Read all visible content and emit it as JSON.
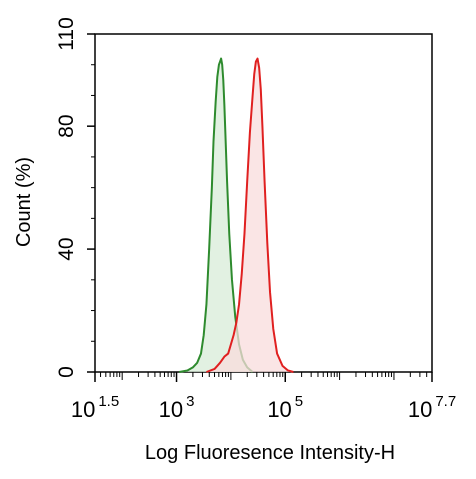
{
  "chart_data": {
    "type": "area",
    "xlabel": "Log Fluoresence Intensity-H",
    "ylabel": "Count  (%)",
    "x_scale": "log10",
    "xlim_exponent": [
      1.5,
      7.7
    ],
    "ylim": [
      0,
      110
    ],
    "x_ticks": [
      {
        "base": "10",
        "exp": "1.5",
        "value": 1.5
      },
      {
        "base": "10",
        "exp": "3",
        "value": 3
      },
      {
        "base": "10",
        "exp": "5",
        "value": 5
      },
      {
        "base": "10",
        "exp": "7.7",
        "value": 7.7
      }
    ],
    "y_ticks": [
      {
        "label": "0",
        "value": 0
      },
      {
        "label": "40",
        "value": 40
      },
      {
        "label": "80",
        "value": 80
      },
      {
        "label": "110",
        "value": 110
      }
    ],
    "grid": false,
    "series": [
      {
        "color": "#2e8b2e",
        "fill": "#d8ecd8",
        "x": [
          3.05,
          3.2,
          3.3,
          3.38,
          3.45,
          3.5,
          3.55,
          3.6,
          3.65,
          3.68,
          3.72,
          3.75,
          3.78,
          3.8,
          3.82,
          3.84,
          3.86,
          3.88,
          3.9,
          3.93,
          3.97,
          4.02,
          4.08,
          4.15,
          4.22,
          4.3,
          4.4
        ],
        "y": [
          0,
          0.5,
          1.5,
          3,
          6,
          12,
          22,
          40,
          60,
          75,
          88,
          96,
          100,
          101,
          102,
          100,
          95,
          87,
          77,
          62,
          45,
          30,
          18,
          9,
          4,
          1.5,
          0
        ]
      },
      {
        "color": "#e02020",
        "fill": "#f8dcdc",
        "x": [
          3.55,
          3.7,
          3.8,
          3.88,
          3.95,
          4.0,
          4.05,
          4.1,
          4.15,
          4.2,
          4.25,
          4.3,
          4.35,
          4.4,
          4.43,
          4.46,
          4.49,
          4.52,
          4.55,
          4.58,
          4.62,
          4.67,
          4.72,
          4.78,
          4.85,
          4.95,
          5.05,
          5.15
        ],
        "y": [
          0,
          1,
          3,
          5,
          6,
          9,
          12,
          16,
          22,
          32,
          45,
          62,
          78,
          90,
          97,
          101,
          102,
          99,
          92,
          80,
          62,
          42,
          26,
          14,
          6,
          2,
          0.5,
          0
        ]
      }
    ]
  }
}
